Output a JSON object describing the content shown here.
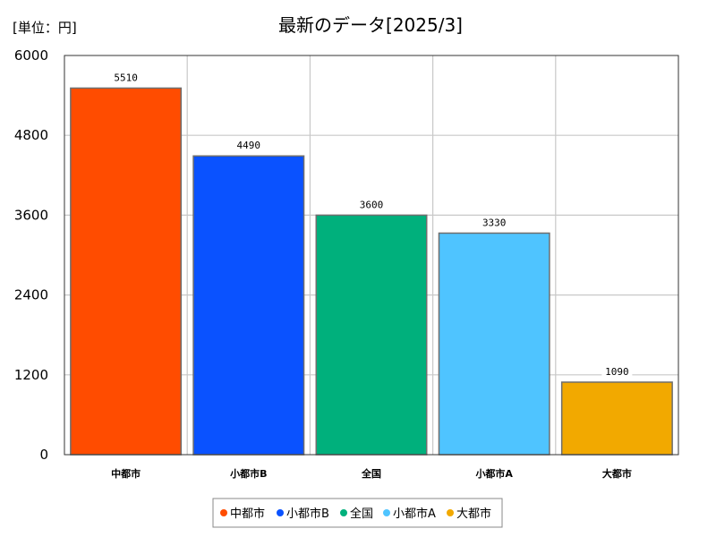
{
  "unit_label": "[単位：円]",
  "chart_data": {
    "type": "bar",
    "title": "最新のデータ[2025/3]",
    "xlabel": "",
    "ylabel": "",
    "ylim": [
      0,
      6000
    ],
    "yticks": [
      "0",
      "1200",
      "2400",
      "3600",
      "4800",
      "6000"
    ],
    "grid": true,
    "legend_position": "bottom-center",
    "categories": [
      "中都市",
      "小都市B",
      "全国",
      "小都市A",
      "大都市"
    ],
    "values": [
      5510,
      4490,
      3600,
      3330,
      1090
    ],
    "data_labels": [
      "5510",
      "4490",
      "3600",
      "3330",
      "1090"
    ],
    "colors": [
      "#ff4c00",
      "#0a52ff",
      "#00b07c",
      "#4fc4ff",
      "#f2a900"
    ]
  }
}
